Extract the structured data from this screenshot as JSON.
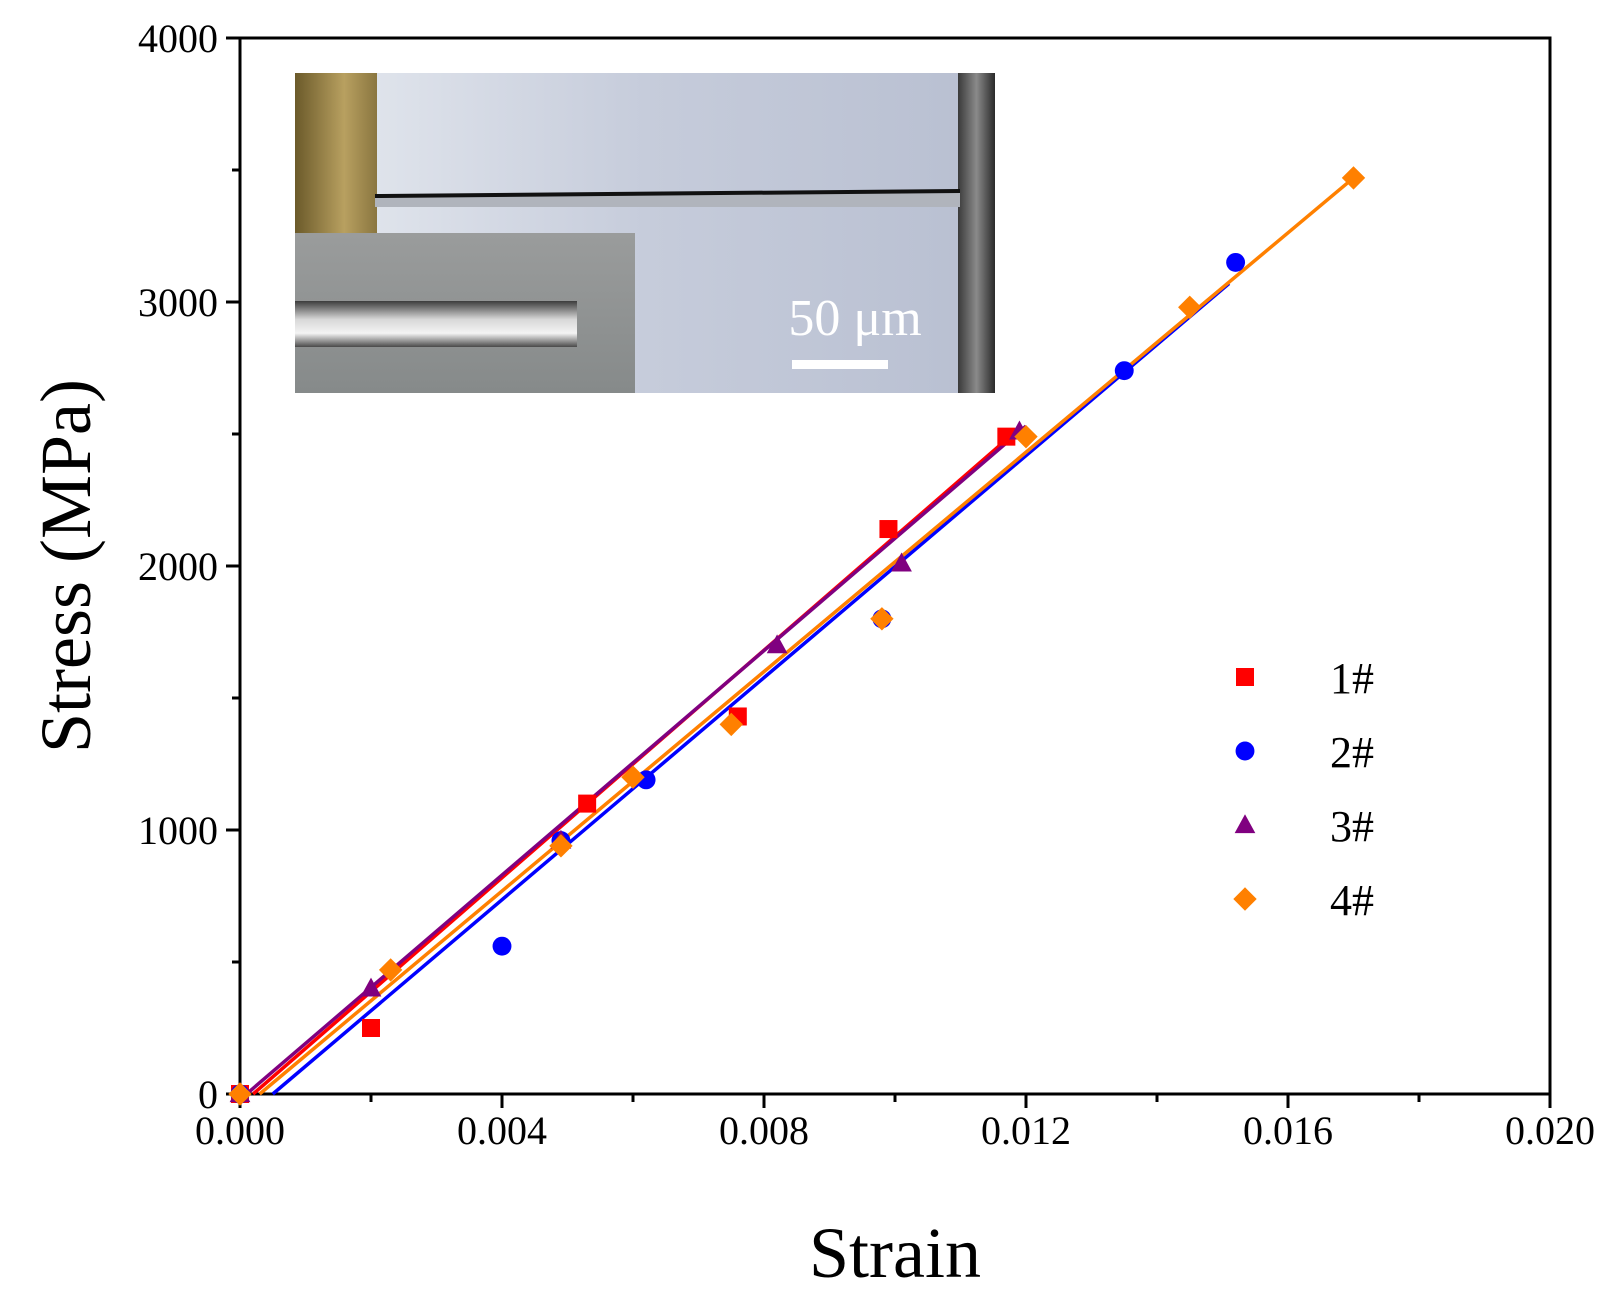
{
  "chart_data": {
    "type": "scatter",
    "xlabel": "Strain",
    "ylabel": "Stress (MPa)",
    "xlim": [
      0,
      0.02
    ],
    "ylim": [
      0,
      4000
    ],
    "x_ticks": [
      "0.000",
      "0.004",
      "0.008",
      "0.012",
      "0.016",
      "0.020"
    ],
    "x_tick_values": [
      0,
      0.004,
      0.008,
      0.012,
      0.016,
      0.02
    ],
    "y_ticks": [
      "0",
      "1000",
      "2000",
      "3000",
      "4000"
    ],
    "y_tick_values": [
      0,
      1000,
      2000,
      3000,
      4000
    ],
    "legend_position": "right",
    "fit_lines": true,
    "series": [
      {
        "name": "1#",
        "color": "#ff0000",
        "marker": "square",
        "x": [
          0.0,
          0.002,
          0.0053,
          0.0076,
          0.0099,
          0.0117
        ],
        "y": [
          0,
          250,
          1100,
          1430,
          2140,
          2490
        ],
        "fit": {
          "x": [
            0.0002,
            0.0118
          ],
          "y": [
            0,
            2500
          ]
        }
      },
      {
        "name": "2#",
        "color": "#0000ff",
        "marker": "circle",
        "x": [
          0.0,
          0.004,
          0.0049,
          0.0062,
          0.0098,
          0.0135,
          0.0152
        ],
        "y": [
          0,
          560,
          960,
          1190,
          1800,
          2740,
          3150
        ],
        "fit": {
          "x": [
            0.0005,
            0.0151
          ],
          "y": [
            0,
            3070
          ]
        }
      },
      {
        "name": "3#",
        "color": "#800080",
        "marker": "triangle",
        "x": [
          0.0,
          0.002,
          0.0049,
          0.0082,
          0.0101,
          0.0119
        ],
        "y": [
          0,
          400,
          960,
          1700,
          2010,
          2510
        ],
        "fit": {
          "x": [
            0.0001,
            0.012
          ],
          "y": [
            0,
            2530
          ]
        }
      },
      {
        "name": "4#",
        "color": "#ff8000",
        "marker": "diamond",
        "x": [
          0.0,
          0.0023,
          0.0049,
          0.006,
          0.0075,
          0.0098,
          0.012,
          0.0145,
          0.017
        ],
        "y": [
          0,
          470,
          940,
          1200,
          1400,
          1800,
          2490,
          2980,
          3470
        ],
        "fit": {
          "x": [
            0.0003,
            0.017
          ],
          "y": [
            0,
            3470
          ]
        }
      }
    ],
    "inset": {
      "description": "micrograph",
      "scale_bar_label": "50 μm"
    }
  }
}
